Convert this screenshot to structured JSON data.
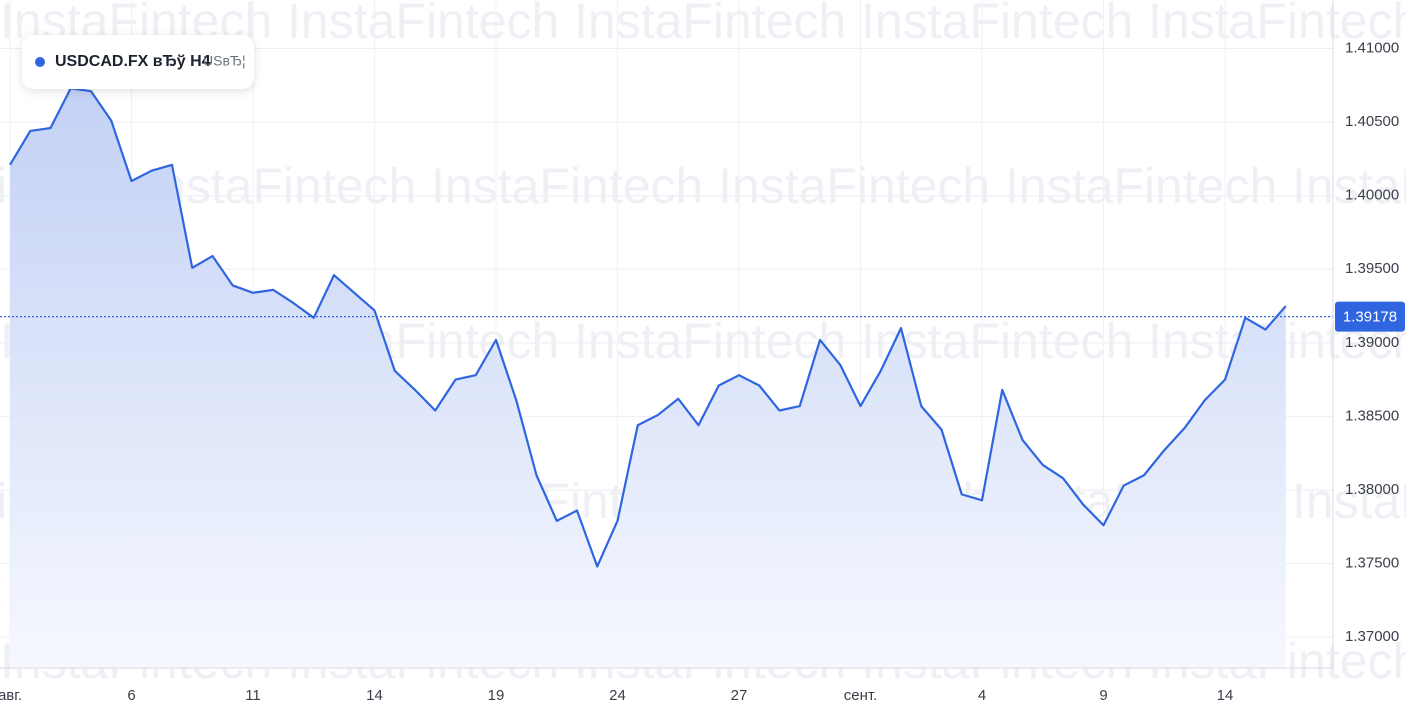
{
  "chart_data": {
    "type": "area",
    "title": "USDCAD.FX вЂў H4",
    "subtitle": "USвЂ¦",
    "watermark": "InstaFintech",
    "categories": [
      "авг.",
      null,
      null,
      null,
      null,
      null,
      "6",
      null,
      null,
      null,
      null,
      null,
      "11",
      null,
      null,
      null,
      null,
      null,
      "14",
      null,
      null,
      null,
      null,
      null,
      "19",
      null,
      null,
      null,
      null,
      null,
      "24",
      null,
      null,
      null,
      null,
      null,
      "27",
      null,
      null,
      null,
      null,
      null,
      "сент.",
      null,
      null,
      null,
      null,
      null,
      "4",
      null,
      null,
      null,
      null,
      null,
      "9",
      null,
      null,
      null,
      null,
      null,
      "14",
      null,
      null,
      null
    ],
    "series": [
      {
        "name": "USDCAD.FX",
        "color": "#2f66e0",
        "values": [
          1.4021,
          1.4044,
          1.4046,
          1.4073,
          1.4071,
          1.4051,
          1.401,
          1.4017,
          1.4021,
          1.3951,
          1.3959,
          1.3939,
          1.3934,
          1.3936,
          1.3927,
          1.3917,
          1.3946,
          1.3934,
          1.3922,
          1.3881,
          1.3868,
          1.3854,
          1.3875,
          1.3878,
          1.3902,
          1.3861,
          1.381,
          1.3779,
          1.3786,
          1.3748,
          1.3779,
          1.3844,
          1.3851,
          1.3862,
          1.3844,
          1.3871,
          1.3878,
          1.3871,
          1.3854,
          1.3857,
          1.3902,
          1.3885,
          1.3857,
          1.3881,
          1.391,
          1.3857,
          1.3841,
          1.3797,
          1.3793,
          1.3868,
          1.3834,
          1.3817,
          1.3808,
          1.379,
          1.3776,
          1.3803,
          1.381,
          1.3827,
          1.3842,
          1.3861,
          1.3875,
          1.3917,
          1.3909,
          1.3925
        ]
      }
    ],
    "last_price": 1.39178,
    "ylim": [
      1.3679,
      1.4133
    ],
    "yticks": [
      {
        "value": 1.37,
        "label": "1.37000"
      },
      {
        "value": 1.375,
        "label": "1.37500"
      },
      {
        "value": 1.38,
        "label": "1.38000"
      },
      {
        "value": 1.385,
        "label": "1.38500"
      },
      {
        "value": 1.39,
        "label": "1.39000"
      },
      {
        "value": 1.395,
        "label": "1.39500"
      },
      {
        "value": 1.4,
        "label": "1.40000"
      },
      {
        "value": 1.405,
        "label": "1.40500"
      },
      {
        "value": 1.41,
        "label": "1.41000"
      }
    ],
    "grid": true
  }
}
